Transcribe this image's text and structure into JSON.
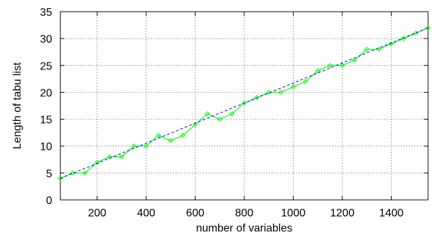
{
  "chart_data": {
    "type": "line",
    "title": "",
    "xlabel": "number of variables",
    "ylabel": "Length of tabu list",
    "xlim": [
      50,
      1550
    ],
    "ylim": [
      0,
      35
    ],
    "xticks": [
      200,
      400,
      600,
      800,
      1000,
      1200,
      1400
    ],
    "yticks": [
      0,
      5,
      10,
      15,
      20,
      25,
      30,
      35
    ],
    "grid": true,
    "series": [
      {
        "style": "solid-with-diamond-markers",
        "color": "#00ff00",
        "x": [
          50,
          100,
          150,
          200,
          250,
          300,
          350,
          400,
          450,
          500,
          550,
          600,
          650,
          700,
          750,
          800,
          850,
          900,
          950,
          1000,
          1050,
          1100,
          1150,
          1200,
          1250,
          1300,
          1350,
          1400,
          1450,
          1500,
          1550
        ],
        "y": [
          4,
          5,
          5,
          7,
          8,
          8,
          10,
          10,
          12,
          11,
          12,
          14,
          16,
          15,
          16,
          18,
          19,
          20,
          20,
          21,
          22,
          24,
          25,
          25,
          26,
          28,
          28,
          29,
          30,
          31,
          32
        ]
      },
      {
        "style": "dashed-fit",
        "color": "#0000ff",
        "x": [
          50,
          1550
        ],
        "y": [
          4,
          32
        ]
      }
    ]
  }
}
